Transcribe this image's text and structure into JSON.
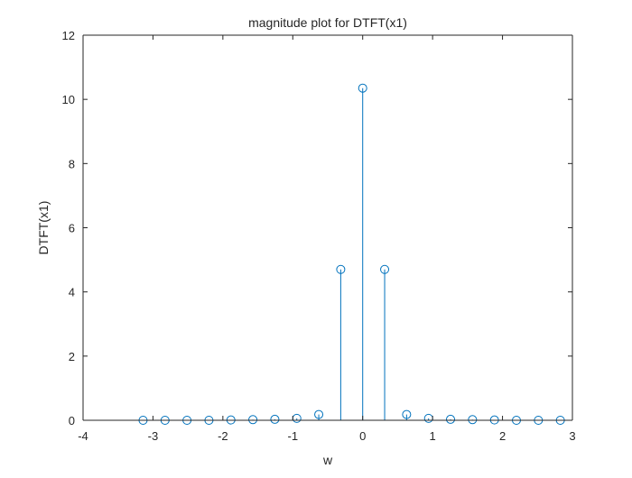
{
  "figure": {
    "background": "#ffffff"
  },
  "chart_data": {
    "type": "stem",
    "title": "magnitude plot for DTFT(x1)",
    "xlabel": "w",
    "ylabel": "DTFT(x1)",
    "xlim": [
      -4,
      3
    ],
    "ylim": [
      0,
      12
    ],
    "xticks": [
      -4,
      -3,
      -2,
      -1,
      0,
      1,
      2,
      3
    ],
    "yticks": [
      0,
      2,
      4,
      6,
      8,
      10,
      12
    ],
    "xtick_labels": [
      "-4",
      "-3",
      "-2",
      "-1",
      "0",
      "1",
      "2",
      "3"
    ],
    "ytick_labels": [
      "0",
      "2",
      "4",
      "6",
      "8",
      "10",
      "12"
    ],
    "grid": false,
    "box": true,
    "series": [
      {
        "color": "#0072bd",
        "marker": "circle",
        "x": [
          -3.1416,
          -2.8274,
          -2.5133,
          -2.1991,
          -1.885,
          -1.5708,
          -1.2566,
          -0.9425,
          -0.6283,
          -0.3142,
          0.0,
          0.3142,
          0.6283,
          0.9425,
          1.2566,
          1.5708,
          1.885,
          2.1991,
          2.5133,
          2.8274
        ],
        "y": [
          0.0,
          0.0,
          0.0,
          0.0,
          0.01,
          0.02,
          0.03,
          0.06,
          0.18,
          4.7,
          10.35,
          4.7,
          0.18,
          0.06,
          0.03,
          0.02,
          0.01,
          0.0,
          0.0,
          0.0
        ]
      }
    ]
  }
}
